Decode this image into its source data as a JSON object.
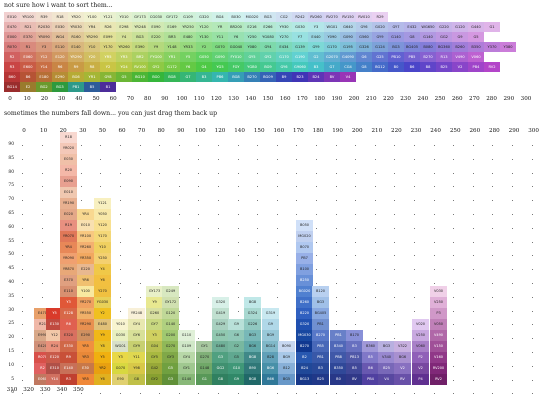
{
  "top_caption": "not sure how i want to sort them...",
  "bottom_caption": "sometimes the numbers fall down... you can just drag them back up",
  "top_axis": [
    "0",
    "10",
    "20",
    "30",
    "40",
    "50",
    "60",
    "70",
    "80",
    "90",
    "100",
    "110",
    "120",
    "130",
    "140",
    "150",
    "160",
    "170",
    "180",
    "190",
    "200",
    "210",
    "220",
    "230",
    "240",
    "250",
    "260",
    "270",
    "280",
    "290",
    "300"
  ],
  "bottom_axis_top": [
    "0",
    "10",
    "20",
    "30",
    "50",
    "60",
    "70",
    "80",
    "90",
    "100",
    "120",
    "140",
    "150",
    "160",
    "170",
    "180",
    "190",
    "200",
    "210",
    "220",
    "230",
    "240",
    "250",
    "260",
    "280",
    "290",
    "300"
  ],
  "bottom_axis_low": [
    "310",
    "320",
    "330",
    "340",
    "350"
  ],
  "y_axis": [
    "90",
    "85",
    "80",
    "75",
    "70",
    "65",
    "60",
    "55",
    "50",
    "45",
    "40",
    "35",
    "30",
    "25",
    "20",
    "15",
    "10",
    "5",
    "0"
  ],
  "colors": {
    "red": "#d93a2a",
    "orange": "#e8832a",
    "yellow": "#f4d23c",
    "green": "#3a9a48",
    "teal": "#2e8f88",
    "blue": "#2a62b0",
    "violet": "#6a3f95",
    "pink": "#e06aa0",
    "tan": "#e8c49a",
    "gray": "#9a9a9a",
    "cream": "#f5eed0"
  },
  "top_rows": [
    [
      "E010",
      "YR100",
      "R39",
      "R18",
      "YR20",
      "Y100",
      "Y121",
      "Y010",
      "GY173",
      "CG030",
      "GY172",
      "G109",
      "G320",
      "BG4",
      "B030",
      "MG020",
      "BG3",
      "CG2",
      "R242",
      "RV260",
      "RV270",
      "RV150",
      "RV010",
      "R29"
    ],
    [
      "E470",
      "R21",
      "R2030",
      "E030",
      "YR030",
      "YR4",
      "R26",
      "E298",
      "YR248",
      "E090",
      "E169",
      "YR250",
      "Y120",
      "YR",
      "BR200",
      "E216",
      "E266",
      "Y930",
      "G030",
      "Y3",
      "WG01",
      "G640",
      "GY6",
      "G020",
      "GY7",
      "E432",
      "WG650",
      "G220",
      "G120",
      "G440",
      "G1"
    ],
    [
      "E000",
      "E370",
      "YR090",
      "WG4",
      "R160",
      "YR290",
      "E099",
      "Y4",
      "BG3",
      "E220",
      "BR3",
      "E480",
      "Y130",
      "Y11",
      "Y6",
      "Y250",
      "YG080",
      "Y270",
      "Y7",
      "E440",
      "Y090",
      "G090",
      "G560",
      "GY9",
      "G140",
      "G8",
      "G140",
      "GG2",
      "G9",
      "G5"
    ],
    [
      "R070",
      "R1",
      "Y3",
      "E110",
      "E140",
      "Y10",
      "Y170",
      "YR260",
      "E390",
      "Y9",
      "Y148",
      "YR33",
      "Y2",
      "G070",
      "GG040",
      "Y080",
      "GY4",
      "E434",
      "G139",
      "GY9",
      "G170",
      "G195",
      "G326",
      "G124",
      "BG3",
      "BG405",
      "B080",
      "BG360",
      "B260",
      "B350",
      "Y370",
      "Y380"
    ],
    [
      "R2",
      "E060",
      "Y12",
      "E120",
      "YR290",
      "Y20",
      "YR5",
      "YR3",
      "BR2",
      "FYG00",
      "YR1",
      "Y5",
      "G050",
      "G090",
      "FY010",
      "GY5",
      "GY2",
      "G170",
      "G190",
      "G2",
      "G2070",
      "G4090",
      "G6",
      "G25",
      "PB10",
      "PB5",
      "B270",
      "R13",
      "V490",
      "V060"
    ],
    [
      "R3",
      "E600",
      "Y14",
      "R6",
      "R9",
      "R8",
      "Y2",
      "YG4",
      "RV100",
      "GY2",
      "G172",
      "Y6",
      "G4",
      "YG5",
      "FGY",
      "YGB0",
      "BG9",
      "GY6",
      "G9060",
      "B3",
      "G7",
      "CG4",
      "G8",
      "BG12",
      "B0",
      "B6",
      "B8",
      "B25",
      "V2",
      "PB4",
      "RV2"
    ],
    [
      "B60",
      "B6",
      "E180",
      "E290",
      "BG6",
      "YR1",
      "GY8",
      "G5",
      "BG10",
      "BG0",
      "BG8",
      "G7",
      "B3",
      "PB6",
      "BG8",
      "B270",
      "BG09",
      "B9",
      "B23",
      "B24",
      "BV",
      "V4"
    ],
    [
      "BG14",
      "E2",
      "BG2",
      "BG3",
      "PB1",
      "B5",
      "B1"
    ]
  ],
  "bottom_columns": [
    {
      "x": 34,
      "items": [
        [
          "E470",
          "#e8a06a"
        ],
        [
          "R21",
          "#f0b8a8"
        ],
        [
          "E990",
          "#d8a888"
        ],
        [
          "E420",
          "#d09078"
        ],
        [
          "R070",
          "#d8504a"
        ],
        [
          "R2",
          "#e06060"
        ],
        [
          "E060",
          "#c07860"
        ]
      ]
    },
    {
      "x": 46,
      "items": [
        [
          "Y5",
          "#d93a2a"
        ],
        [
          "E130",
          "#c04a40"
        ],
        [
          "Y12",
          "#f2c8a8"
        ],
        [
          "R24",
          "#e8907a"
        ],
        [
          "E120",
          "#c85a4a"
        ],
        [
          "E310",
          "#b05048"
        ],
        [
          "Y14",
          "#d07060"
        ]
      ]
    },
    {
      "x": 60,
      "items": [
        [
          "R18",
          "#f8d8d0"
        ],
        [
          "YR020",
          "#f4c8b8"
        ],
        [
          "E030",
          "#f0c0a8"
        ],
        [
          "R20",
          "#f4b8a8"
        ],
        [
          "E090",
          "#e8a090"
        ],
        [
          "E010",
          "#f0c8b0"
        ],
        [
          "YR190",
          "#e8b090"
        ],
        [
          "E020",
          "#e4a888"
        ],
        [
          "R19",
          "#e89080"
        ],
        [
          "YR070",
          "#e07858"
        ],
        [
          "YR4",
          "#e88858"
        ],
        [
          "YR090",
          "#f0a070"
        ],
        [
          "YR870",
          "#e8a878"
        ],
        [
          "E370",
          "#e0a080"
        ],
        [
          "E110",
          "#d89070"
        ],
        [
          "Y3",
          "#e05838"
        ],
        [
          "E128",
          "#d86848"
        ],
        [
          "R6",
          "#e06050"
        ],
        [
          "E320",
          "#d87060"
        ],
        [
          "E330",
          "#d06848"
        ],
        [
          "R9",
          "#c85038"
        ],
        [
          "E140",
          "#c87058"
        ],
        [
          "R3",
          "#c04030"
        ]
      ]
    },
    {
      "x": 77,
      "items": [
        [
          "YR4",
          "#f8d890"
        ],
        [
          "E010",
          "#f8e0b0"
        ],
        [
          "YR100",
          "#f8c880"
        ],
        [
          "YR260",
          "#f4b070"
        ],
        [
          "YR350",
          "#f2a860"
        ],
        [
          "E220",
          "#e8b890"
        ],
        [
          "YR6",
          "#f0c070"
        ],
        [
          "Y100",
          "#f8e8a0"
        ],
        [
          "YR270",
          "#f0a060"
        ],
        [
          "YR550",
          "#f0b068"
        ],
        [
          "YR290",
          "#e89050"
        ],
        [
          "E290",
          "#d09060"
        ],
        [
          "YR5",
          "#f09040"
        ],
        [
          "YR3",
          "#e88838"
        ],
        [
          "E30",
          "#c87848"
        ],
        [
          "YR5",
          "#f08838"
        ]
      ]
    },
    {
      "x": 94,
      "items": [
        [
          "Y121",
          "#f8f0c0"
        ],
        [
          "Y050",
          "#f8e8a8"
        ],
        [
          "Y120",
          "#f8e090"
        ],
        [
          "Y170",
          "#f4d878"
        ],
        [
          "Y10",
          "#f0d060"
        ],
        [
          "Y250",
          "#f4d070"
        ],
        [
          "Y4",
          "#f0c848"
        ],
        [
          "Y6",
          "#f2c040"
        ],
        [
          "Y270",
          "#f0c040"
        ],
        [
          "YG030",
          "#e8d058"
        ],
        [
          "Y2",
          "#f0c020"
        ],
        [
          "E480",
          "#e0c078"
        ],
        [
          "Y9",
          "#f0b818"
        ],
        [
          "Y8",
          "#e8c028"
        ],
        [
          "Y5",
          "#f0b010"
        ],
        [
          "YR2",
          "#e8a010"
        ],
        [
          "Y6",
          "#e0b020"
        ]
      ]
    },
    {
      "x": 112,
      "items": [
        [
          "Y010",
          "#f8f4d0"
        ],
        [
          "G030",
          "#e8f0c0"
        ],
        [
          "WG01",
          "#d8e0c8"
        ],
        [
          "Y3",
          "#e8d848"
        ],
        [
          "G070",
          "#d8d840"
        ],
        [
          "E90",
          "#e0d070"
        ]
      ]
    },
    {
      "x": 128,
      "items": [
        [
          "YR248",
          "#f8f0d8"
        ],
        [
          "GY4",
          "#e8e8b0"
        ],
        [
          "GY6",
          "#d8e098"
        ],
        [
          "GY9",
          "#c8d070"
        ],
        [
          "Y11",
          "#e0d850"
        ],
        [
          "Y98",
          "#d8c848"
        ],
        [
          "G8",
          "#c0c048"
        ]
      ]
    },
    {
      "x": 146,
      "items": [
        [
          "GY173",
          "#e8f0c8"
        ],
        [
          "Y9",
          "#e8e890"
        ],
        [
          "G260",
          "#d8e0a0"
        ],
        [
          "GY7",
          "#c8d880"
        ],
        [
          "Y3",
          "#d0d060"
        ],
        [
          "G04",
          "#b8c050"
        ],
        [
          "GY5",
          "#a8b840"
        ],
        [
          "G42",
          "#98a838"
        ],
        [
          "GY2",
          "#88a030"
        ]
      ]
    },
    {
      "x": 162,
      "items": [
        [
          "G249",
          "#d8e8c0"
        ],
        [
          "GY172",
          "#d0e0b0"
        ],
        [
          "G120",
          "#c0d898"
        ],
        [
          "G140",
          "#b0d080"
        ],
        [
          "G200",
          "#a0c870"
        ],
        [
          "G270",
          "#90b858"
        ],
        [
          "GY3",
          "#80a848"
        ],
        [
          "G5",
          "#70a040"
        ],
        [
          "G3",
          "#609038"
        ]
      ]
    },
    {
      "x": 178,
      "items": [
        [
          "G110",
          "#e0f0d8"
        ],
        [
          "G109",
          "#d0e8c8"
        ],
        [
          "GY4",
          "#b8d8a8"
        ],
        [
          "GY1",
          "#a0c890"
        ],
        [
          "G140",
          "#88b878"
        ]
      ]
    },
    {
      "x": 196,
      "items": [
        [
          "GY1",
          "#a8c8a0"
        ],
        [
          "G270",
          "#80b078"
        ],
        [
          "G148",
          "#70a868"
        ],
        [
          "G1",
          "#589858"
        ]
      ]
    },
    {
      "x": 212,
      "items": [
        [
          "G320",
          "#d8f0e8"
        ],
        [
          "G419",
          "#c0e0d0"
        ],
        [
          "G429",
          "#a8d0c0"
        ],
        [
          "G450",
          "#90c8b0"
        ],
        [
          "G480",
          "#70b098"
        ],
        [
          "G3",
          "#50a080"
        ],
        [
          "GG2",
          "#409070"
        ],
        [
          "G8",
          "#308060"
        ]
      ]
    },
    {
      "x": 228,
      "items": [
        [
          "G9",
          "#b8e0d8"
        ],
        [
          "G6",
          "#90c8b8"
        ],
        [
          "G2",
          "#78b8a0"
        ],
        [
          "G5",
          "#60a890"
        ],
        [
          "G10",
          "#409878"
        ],
        [
          "G9",
          "#308868"
        ]
      ]
    },
    {
      "x": 244,
      "items": [
        [
          "BG8",
          "#c0e8e8"
        ],
        [
          "G324",
          "#a8d8d0"
        ],
        [
          "G226",
          "#90c8c0"
        ],
        [
          "BG3",
          "#78b8b8"
        ],
        [
          "BG6",
          "#60a8a8"
        ],
        [
          "BG8",
          "#408888"
        ],
        [
          "B90",
          "#307878"
        ],
        [
          "BG8",
          "#206868"
        ]
      ]
    },
    {
      "x": 262,
      "items": [
        [
          "G319",
          "#c8e8f0"
        ],
        [
          "G9",
          "#b0d8e8"
        ],
        [
          "BG9",
          "#98c8d8"
        ],
        [
          "BG14",
          "#80b8c8"
        ],
        [
          "B28",
          "#60a0b8"
        ],
        [
          "BG6",
          "#4890a8"
        ],
        [
          "B66",
          "#307898"
        ]
      ]
    },
    {
      "x": 278,
      "items": [
        [
          "B090",
          "#c8d8f0"
        ],
        [
          "BG9",
          "#a8c8e8"
        ],
        [
          "B12",
          "#88b0d8"
        ],
        [
          "BG5",
          "#6898c8"
        ]
      ]
    },
    {
      "x": 296,
      "items": [
        [
          "B050",
          "#d0e0f8"
        ],
        [
          "MG020",
          "#c0d0f0"
        ],
        [
          "B070",
          "#b0c8f0"
        ],
        [
          "PB7",
          "#98b0e8"
        ],
        [
          "B100",
          "#80a0e0"
        ],
        [
          "B250",
          "#6890d8"
        ],
        [
          "BG020",
          "#5080d0"
        ],
        [
          "B260",
          "#4070c8"
        ],
        [
          "B220",
          "#3060c0"
        ],
        [
          "G320",
          "#2050b0"
        ],
        [
          "MG030",
          "#1848a0"
        ],
        [
          "B270",
          "#103890"
        ],
        [
          "B2",
          "#2858b0"
        ],
        [
          "B24",
          "#204898"
        ],
        [
          "BG13",
          "#183888"
        ]
      ]
    },
    {
      "x": 312,
      "items": [
        [
          "B120",
          "#b8d0f0"
        ],
        [
          "BG3",
          "#a0c0e8"
        ],
        [
          "BG405",
          "#88a8e0"
        ],
        [
          "PB1",
          "#7090d0"
        ],
        [
          "B270",
          "#5878c8"
        ],
        [
          "PB5",
          "#4868b8"
        ],
        [
          "PB1",
          "#3858a8"
        ],
        [
          "B3",
          "#284898"
        ],
        [
          "B25",
          "#203888"
        ]
      ]
    },
    {
      "x": 330,
      "items": [
        [
          "PB1",
          "#6880c8"
        ],
        [
          "B340",
          "#5068b8"
        ],
        [
          "PB8",
          "#4058a8"
        ],
        [
          "B350",
          "#304898"
        ],
        [
          "B0",
          "#283888"
        ]
      ]
    },
    {
      "x": 346,
      "items": [
        [
          "B170",
          "#8890d8"
        ],
        [
          "B3",
          "#6870c0"
        ],
        [
          "PB13",
          "#5058a8"
        ],
        [
          "B5",
          "#404898"
        ],
        [
          "BV",
          "#303888"
        ]
      ]
    },
    {
      "x": 362,
      "items": [
        [
          "B360",
          "#a098d8"
        ],
        [
          "B5",
          "#8078c8"
        ],
        [
          "B6",
          "#6858b0"
        ],
        [
          "PB4",
          "#5040a0"
        ]
      ]
    },
    {
      "x": 378,
      "items": [
        [
          "BG3",
          "#b8b0e0"
        ],
        [
          "V340",
          "#9888d0"
        ],
        [
          "B25",
          "#7868b8"
        ],
        [
          "V4",
          "#5848a0"
        ]
      ]
    },
    {
      "x": 394,
      "items": [
        [
          "V322",
          "#c8b0e0"
        ],
        [
          "BG6",
          "#a890d0"
        ],
        [
          "V2",
          "#8870c0"
        ],
        [
          "RV",
          "#6850a8"
        ]
      ]
    },
    {
      "x": 412,
      "items": [
        [
          "V020",
          "#e0c8f0"
        ],
        [
          "V250",
          "#c8a8e0"
        ],
        [
          "V060",
          "#a880c8"
        ],
        [
          "P2",
          "#9060b8"
        ],
        [
          "V2",
          "#7848a0"
        ],
        [
          "P4",
          "#603090"
        ]
      ]
    },
    {
      "x": 430,
      "items": [
        [
          "V030",
          "#f0d0e8"
        ],
        [
          "V250",
          "#e0b0d8"
        ],
        [
          "P3",
          "#d098c8"
        ],
        [
          "V050",
          "#c080b8"
        ],
        [
          "V490",
          "#b068a8"
        ],
        [
          "V150",
          "#a05098"
        ],
        [
          "V160",
          "#903888"
        ],
        [
          "RV200",
          "#802878"
        ],
        [
          "RV2",
          "#702068"
        ]
      ]
    }
  ]
}
